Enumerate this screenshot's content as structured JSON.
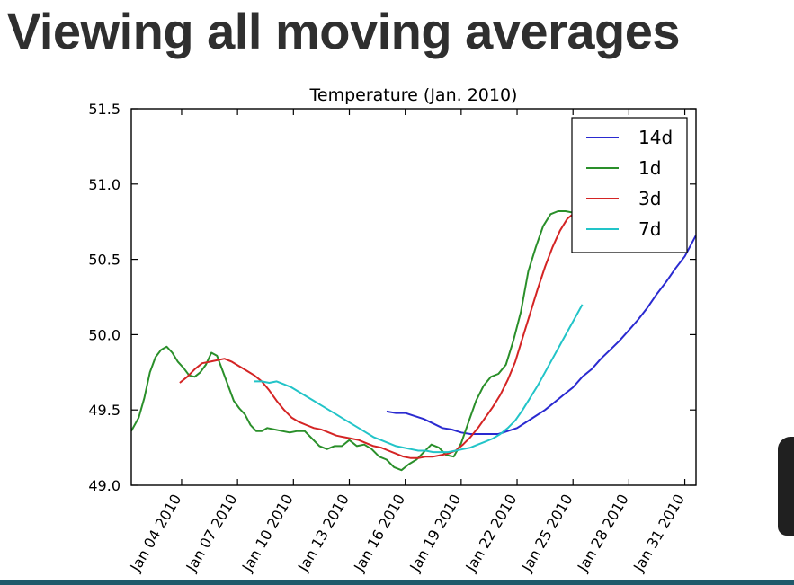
{
  "slide": {
    "title": "Viewing all moving averages"
  },
  "chart_data": {
    "type": "line",
    "title": "Temperature (Jan. 2010)",
    "xlabel": "",
    "ylabel": "",
    "xlim": [
      1.3,
      31.6
    ],
    "ylim": [
      49.0,
      51.5
    ],
    "yticks": [
      {
        "value": 49.0,
        "label": "49.0"
      },
      {
        "value": 49.5,
        "label": "49.5"
      },
      {
        "value": 50.0,
        "label": "50.0"
      },
      {
        "value": 50.5,
        "label": "50.5"
      },
      {
        "value": 51.0,
        "label": "51.0"
      },
      {
        "value": 51.5,
        "label": "51.5"
      }
    ],
    "xticks": [
      {
        "value": 4,
        "label": "Jan 04 2010"
      },
      {
        "value": 7,
        "label": "Jan 07 2010"
      },
      {
        "value": 10,
        "label": "Jan 10 2010"
      },
      {
        "value": 13,
        "label": "Jan 13 2010"
      },
      {
        "value": 16,
        "label": "Jan 16 2010"
      },
      {
        "value": 19,
        "label": "Jan 19 2010"
      },
      {
        "value": 22,
        "label": "Jan 22 2010"
      },
      {
        "value": 25,
        "label": "Jan 25 2010"
      },
      {
        "value": 28,
        "label": "Jan 28 2010"
      },
      {
        "value": 31,
        "label": "Jan 31 2010"
      }
    ],
    "grid": false,
    "legend_position": "top-right",
    "series": [
      {
        "name": "14d",
        "color": "#2a2ad0",
        "x": [
          15.0,
          15.5,
          16.0,
          16.5,
          17.0,
          17.5,
          18.0,
          18.5,
          19.0,
          19.5,
          20.0,
          20.5,
          21.0,
          21.5,
          22.0,
          22.5,
          23.0,
          23.5,
          24.0,
          24.5,
          25.0,
          25.5,
          26.0,
          26.5,
          27.0,
          27.5,
          28.0,
          28.5,
          29.0,
          29.5,
          30.0,
          30.5,
          31.0,
          31.6
        ],
        "y": [
          49.49,
          49.48,
          49.48,
          49.46,
          49.44,
          49.41,
          49.38,
          49.37,
          49.35,
          49.34,
          49.34,
          49.34,
          49.34,
          49.36,
          49.38,
          49.42,
          49.46,
          49.5,
          49.55,
          49.6,
          49.65,
          49.72,
          49.77,
          49.84,
          49.9,
          49.96,
          50.03,
          50.1,
          50.18,
          50.27,
          50.35,
          50.44,
          50.52,
          50.66
        ]
      },
      {
        "name": "1d",
        "color": "#2a8f2a",
        "x": [
          1.3,
          1.7,
          2.0,
          2.3,
          2.6,
          2.9,
          3.2,
          3.5,
          3.8,
          4.1,
          4.4,
          4.7,
          5.0,
          5.3,
          5.6,
          5.9,
          6.2,
          6.5,
          6.8,
          7.1,
          7.4,
          7.7,
          8.0,
          8.3,
          8.6,
          9.0,
          9.4,
          9.8,
          10.2,
          10.6,
          11.0,
          11.4,
          11.8,
          12.2,
          12.6,
          13.0,
          13.4,
          13.8,
          14.2,
          14.6,
          15.0,
          15.4,
          15.8,
          16.2,
          16.6,
          17.0,
          17.4,
          17.8,
          18.2,
          18.6,
          19.0,
          19.4,
          19.8,
          20.2,
          20.6,
          21.0,
          21.4,
          21.8,
          22.2,
          22.6,
          23.0,
          23.4,
          23.8,
          24.2,
          24.6,
          25.0,
          25.3,
          25.6
        ],
        "y": [
          49.36,
          49.45,
          49.58,
          49.75,
          49.85,
          49.9,
          49.92,
          49.88,
          49.82,
          49.78,
          49.73,
          49.72,
          49.75,
          49.8,
          49.88,
          49.86,
          49.76,
          49.66,
          49.56,
          49.51,
          49.47,
          49.4,
          49.36,
          49.36,
          49.38,
          49.37,
          49.36,
          49.35,
          49.36,
          49.36,
          49.31,
          49.26,
          49.24,
          49.26,
          49.26,
          49.3,
          49.26,
          49.27,
          49.24,
          49.19,
          49.17,
          49.12,
          49.1,
          49.14,
          49.17,
          49.22,
          49.27,
          49.25,
          49.2,
          49.19,
          49.28,
          49.42,
          49.56,
          49.66,
          49.72,
          49.74,
          49.8,
          49.96,
          50.15,
          50.42,
          50.58,
          50.72,
          50.8,
          50.82,
          50.82,
          50.81,
          50.82,
          50.84
        ]
      },
      {
        "name": "3d",
        "color": "#d42424",
        "x": [
          3.9,
          4.3,
          4.7,
          5.1,
          5.5,
          5.9,
          6.3,
          6.7,
          7.1,
          7.5,
          7.9,
          8.3,
          8.7,
          9.1,
          9.5,
          9.9,
          10.3,
          10.7,
          11.1,
          11.5,
          11.9,
          12.3,
          12.7,
          13.1,
          13.5,
          13.9,
          14.3,
          14.7,
          15.1,
          15.5,
          15.9,
          16.3,
          16.7,
          17.1,
          17.5,
          17.9,
          18.3,
          18.7,
          19.1,
          19.5,
          19.9,
          20.3,
          20.7,
          21.1,
          21.5,
          21.9,
          22.3,
          22.7,
          23.1,
          23.5,
          23.9,
          24.3,
          24.7,
          25.1,
          25.5
        ],
        "y": [
          49.68,
          49.72,
          49.77,
          49.81,
          49.82,
          49.83,
          49.84,
          49.82,
          49.79,
          49.76,
          49.73,
          49.69,
          49.63,
          49.56,
          49.5,
          49.45,
          49.42,
          49.4,
          49.38,
          49.37,
          49.35,
          49.33,
          49.32,
          49.31,
          49.3,
          49.28,
          49.26,
          49.25,
          49.23,
          49.21,
          49.19,
          49.18,
          49.18,
          49.19,
          49.19,
          49.2,
          49.21,
          49.23,
          49.27,
          49.32,
          49.38,
          49.45,
          49.52,
          49.6,
          49.7,
          49.82,
          49.98,
          50.14,
          50.3,
          50.45,
          50.58,
          50.69,
          50.77,
          50.81,
          50.83
        ]
      },
      {
        "name": "7d",
        "color": "#22c4c8",
        "x": [
          7.9,
          8.3,
          8.7,
          9.1,
          9.5,
          9.9,
          10.3,
          10.7,
          11.1,
          11.5,
          11.9,
          12.3,
          12.7,
          13.1,
          13.5,
          13.9,
          14.3,
          14.7,
          15.1,
          15.5,
          15.9,
          16.3,
          16.7,
          17.1,
          17.5,
          17.9,
          18.3,
          18.7,
          19.1,
          19.5,
          19.9,
          20.3,
          20.7,
          21.1,
          21.5,
          21.9,
          22.3,
          22.7,
          23.1,
          23.5,
          23.9,
          24.3,
          24.7,
          25.1,
          25.5
        ],
        "y": [
          49.69,
          49.69,
          49.68,
          49.69,
          49.67,
          49.65,
          49.62,
          49.59,
          49.56,
          49.53,
          49.5,
          49.47,
          49.44,
          49.41,
          49.38,
          49.35,
          49.32,
          49.3,
          49.28,
          49.26,
          49.25,
          49.24,
          49.23,
          49.23,
          49.22,
          49.22,
          49.22,
          49.23,
          49.24,
          49.25,
          49.27,
          49.29,
          49.31,
          49.34,
          49.38,
          49.43,
          49.5,
          49.58,
          49.66,
          49.75,
          49.84,
          49.93,
          50.02,
          50.11,
          50.2
        ]
      }
    ]
  }
}
